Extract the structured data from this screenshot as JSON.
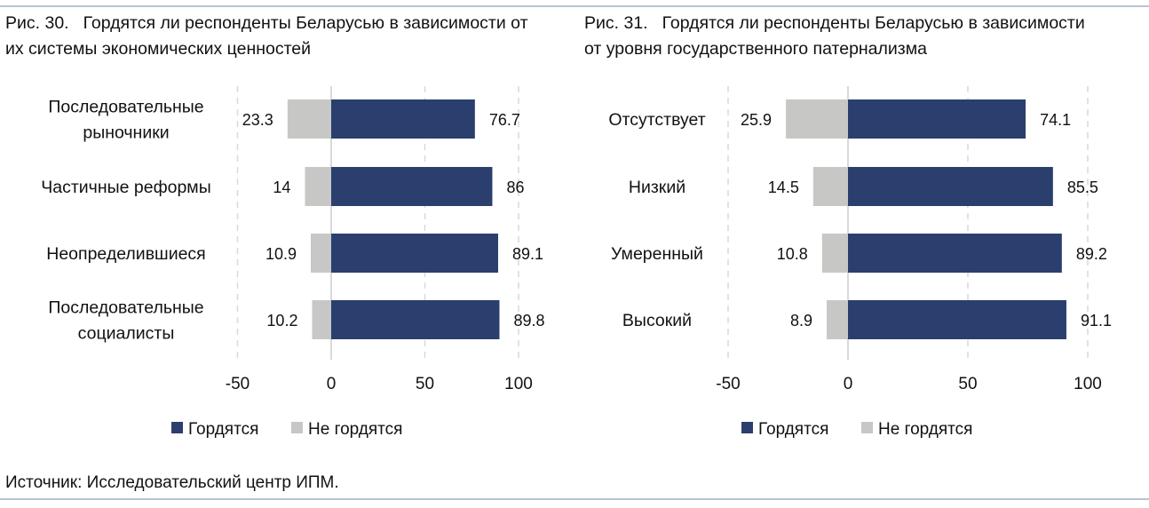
{
  "colors": {
    "proud": "#2b3f6e",
    "not_proud": "#c7c8c6",
    "grid": "#d9d9d9"
  },
  "source": "Источник: Исследовательский центр ИПМ.",
  "chart_data": [
    {
      "type": "bar",
      "orientation": "horizontal-diverging",
      "number": "Рис. 30.",
      "title_line1": "Гордятся ли респонденты Беларусью в зависимости от",
      "title_line2": "их системы экономических ценностей",
      "categories": [
        [
          "Последовательные",
          "рыночники"
        ],
        [
          "Частичные реформы"
        ],
        [
          "Неопределившиеся"
        ],
        [
          "Последовательные",
          "социалисты"
        ]
      ],
      "series": [
        {
          "name": "Гордятся",
          "values": [
            76.7,
            86,
            89.1,
            89.8
          ],
          "labels": [
            "76.7",
            "86",
            "89.1",
            "89.8"
          ]
        },
        {
          "name": "Не гордятся",
          "values": [
            -23.3,
            -14,
            -10.9,
            -10.2
          ],
          "labels": [
            "23.3",
            "14",
            "10.9",
            "10.2"
          ]
        }
      ],
      "xlim": [
        -50,
        100
      ],
      "ticks": [
        -50,
        0,
        50,
        100
      ],
      "tick_labels": [
        "-50",
        "0",
        "50",
        "100"
      ],
      "grid": true,
      "legend": "bottom"
    },
    {
      "type": "bar",
      "orientation": "horizontal-diverging",
      "number": "Рис. 31.",
      "title_line1": "Гордятся ли респонденты Беларусью в зависимости",
      "title_line2": "от уровня государственного патернализма",
      "categories": [
        [
          "Отсутствует"
        ],
        [
          "Низкий"
        ],
        [
          "Умеренный"
        ],
        [
          "Высокий"
        ]
      ],
      "series": [
        {
          "name": "Гордятся",
          "values": [
            74.1,
            85.5,
            89.2,
            91.1
          ],
          "labels": [
            "74.1",
            "85.5",
            "89.2",
            "91.1"
          ]
        },
        {
          "name": "Не гордятся",
          "values": [
            -25.9,
            -14.5,
            -10.8,
            -8.9
          ],
          "labels": [
            "25.9",
            "14.5",
            "10.8",
            "8.9"
          ]
        }
      ],
      "xlim": [
        -50,
        100
      ],
      "ticks": [
        -50,
        0,
        50,
        100
      ],
      "tick_labels": [
        "-50",
        "0",
        "50",
        "100"
      ],
      "grid": true,
      "legend": "bottom"
    }
  ]
}
